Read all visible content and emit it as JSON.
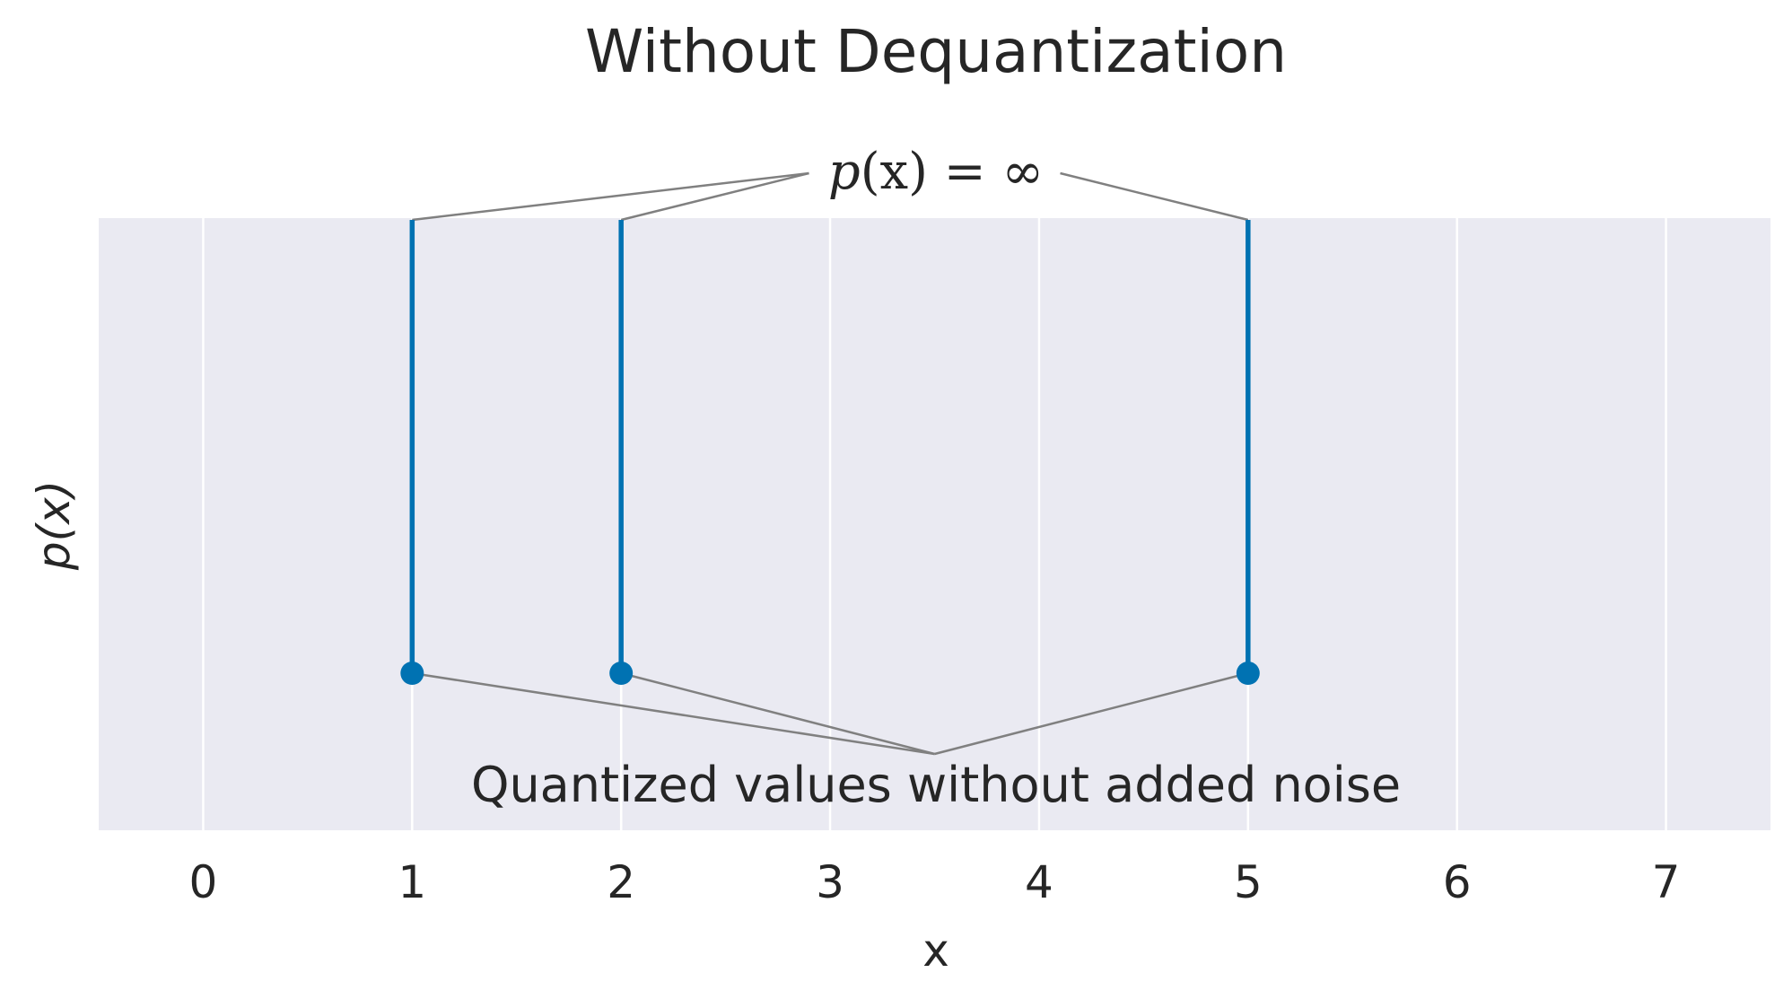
{
  "chart_data": {
    "type": "stem",
    "title": "Without Dequantization",
    "xlabel": "x",
    "ylabel": "p(x)",
    "xlim": [
      -0.5,
      7.5
    ],
    "xticks": [
      0,
      1,
      2,
      3,
      4,
      5,
      6,
      7
    ],
    "y_ticks_visible": false,
    "grid": true,
    "background_color": "#EAEAF2",
    "grid_color": "#FFFFFF",
    "series": [
      {
        "x": [
          1,
          2,
          5
        ],
        "color": "#0072B2"
      }
    ],
    "annotations": {
      "top": {
        "text_prefix": "p",
        "text_var": "(x)",
        "text_rest": " = ∞"
      },
      "bottom": {
        "text": "Quantized values without added noise"
      }
    },
    "annotation_color": "#808080"
  }
}
